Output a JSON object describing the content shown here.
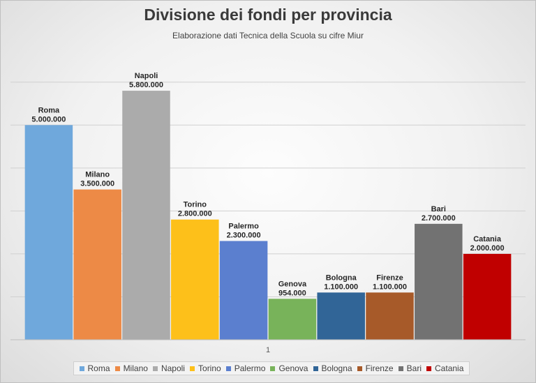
{
  "chart_data": {
    "type": "bar",
    "title": "Divisione dei fondi per provincia",
    "subtitle": "Elaborazione dati Tecnica della Scuola su cifre Miur",
    "categories": [
      "1"
    ],
    "ylim": [
      0,
      6500000
    ],
    "grid": true,
    "legend_position": "bottom",
    "series": [
      {
        "name": "Roma",
        "value": 5000000,
        "value_label": "5.000.000",
        "color": "#6fa8dc"
      },
      {
        "name": "Milano",
        "value": 3500000,
        "value_label": "3.500.000",
        "color": "#ed8a46"
      },
      {
        "name": "Napoli",
        "value": 5800000,
        "value_label": "5.800.000",
        "color": "#ababab"
      },
      {
        "name": "Torino",
        "value": 2800000,
        "value_label": "2.800.000",
        "color": "#fdc01a"
      },
      {
        "name": "Palermo",
        "value": 2300000,
        "value_label": "2.300.000",
        "color": "#5b7fcf"
      },
      {
        "name": "Genova",
        "value": 954000,
        "value_label": "954.000",
        "color": "#78b35a"
      },
      {
        "name": "Bologna",
        "value": 1100000,
        "value_label": "1.100.000",
        "color": "#316597"
      },
      {
        "name": "Firenze",
        "value": 1100000,
        "value_label": "1.100.000",
        "color": "#a75a29"
      },
      {
        "name": "Bari",
        "value": 2700000,
        "value_label": "2.700.000",
        "color": "#727272"
      },
      {
        "name": "Catania",
        "value": 2000000,
        "value_label": "2.000.000",
        "color": "#c00000"
      }
    ]
  }
}
